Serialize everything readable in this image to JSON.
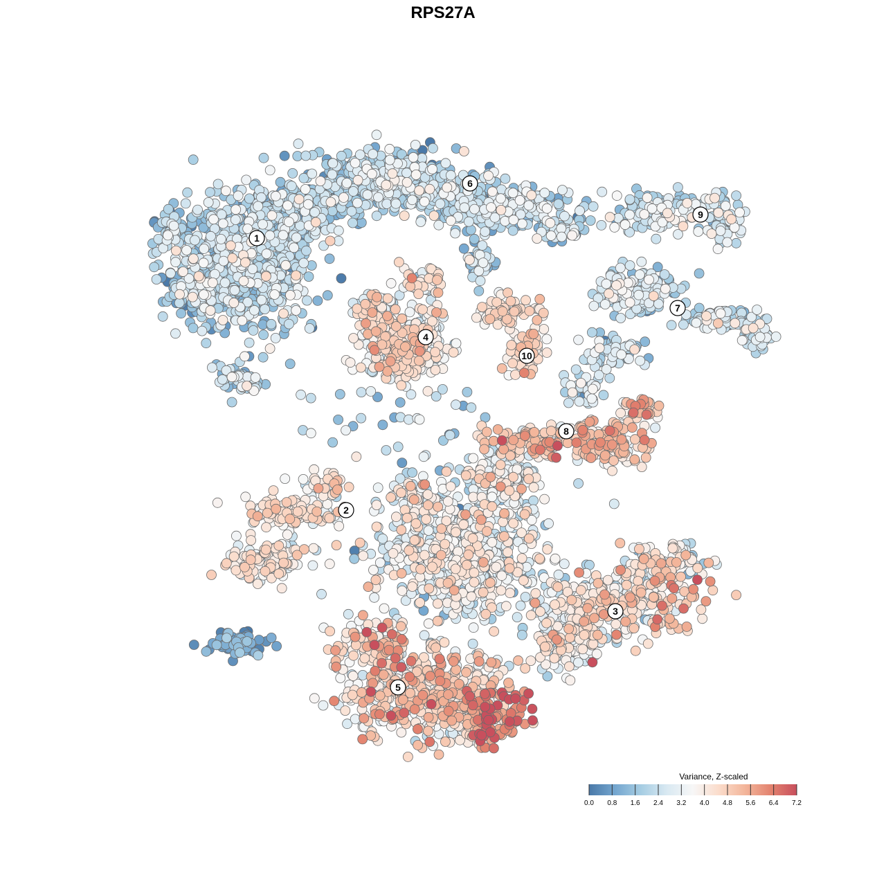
{
  "chart_data": {
    "type": "scatter",
    "title": "RPS27A",
    "xlabel": "",
    "ylabel": "",
    "color_legend": {
      "title": "Variance, Z-scaled",
      "min": 0.0,
      "max": 7.2,
      "ticks": [
        "0.0",
        "0.8",
        "1.6",
        "2.4",
        "3.2",
        "4.0",
        "4.8",
        "5.6",
        "6.4",
        "7.2"
      ],
      "colors": [
        "#4a79a8",
        "#74a6cf",
        "#a6cde3",
        "#d9e9f2",
        "#f7f7f7",
        "#fbdccb",
        "#f3b69b",
        "#e3836f",
        "#c84f5d"
      ],
      "placement": "bottom-right"
    },
    "clusters": [
      {
        "label": "1",
        "mean_value": 2.0
      },
      {
        "label": "2",
        "mean_value": 3.8
      },
      {
        "label": "3",
        "mean_value": 3.5
      },
      {
        "label": "4",
        "mean_value": 3.8
      },
      {
        "label": "5",
        "mean_value": 4.4
      },
      {
        "label": "6",
        "mean_value": 2.0
      },
      {
        "label": "7",
        "mean_value": 2.3
      },
      {
        "label": "8",
        "mean_value": 4.6
      },
      {
        "label": "9",
        "mean_value": 2.6
      },
      {
        "label": "10",
        "mean_value": 4.3
      }
    ],
    "grid": false,
    "axes_visible": false
  }
}
